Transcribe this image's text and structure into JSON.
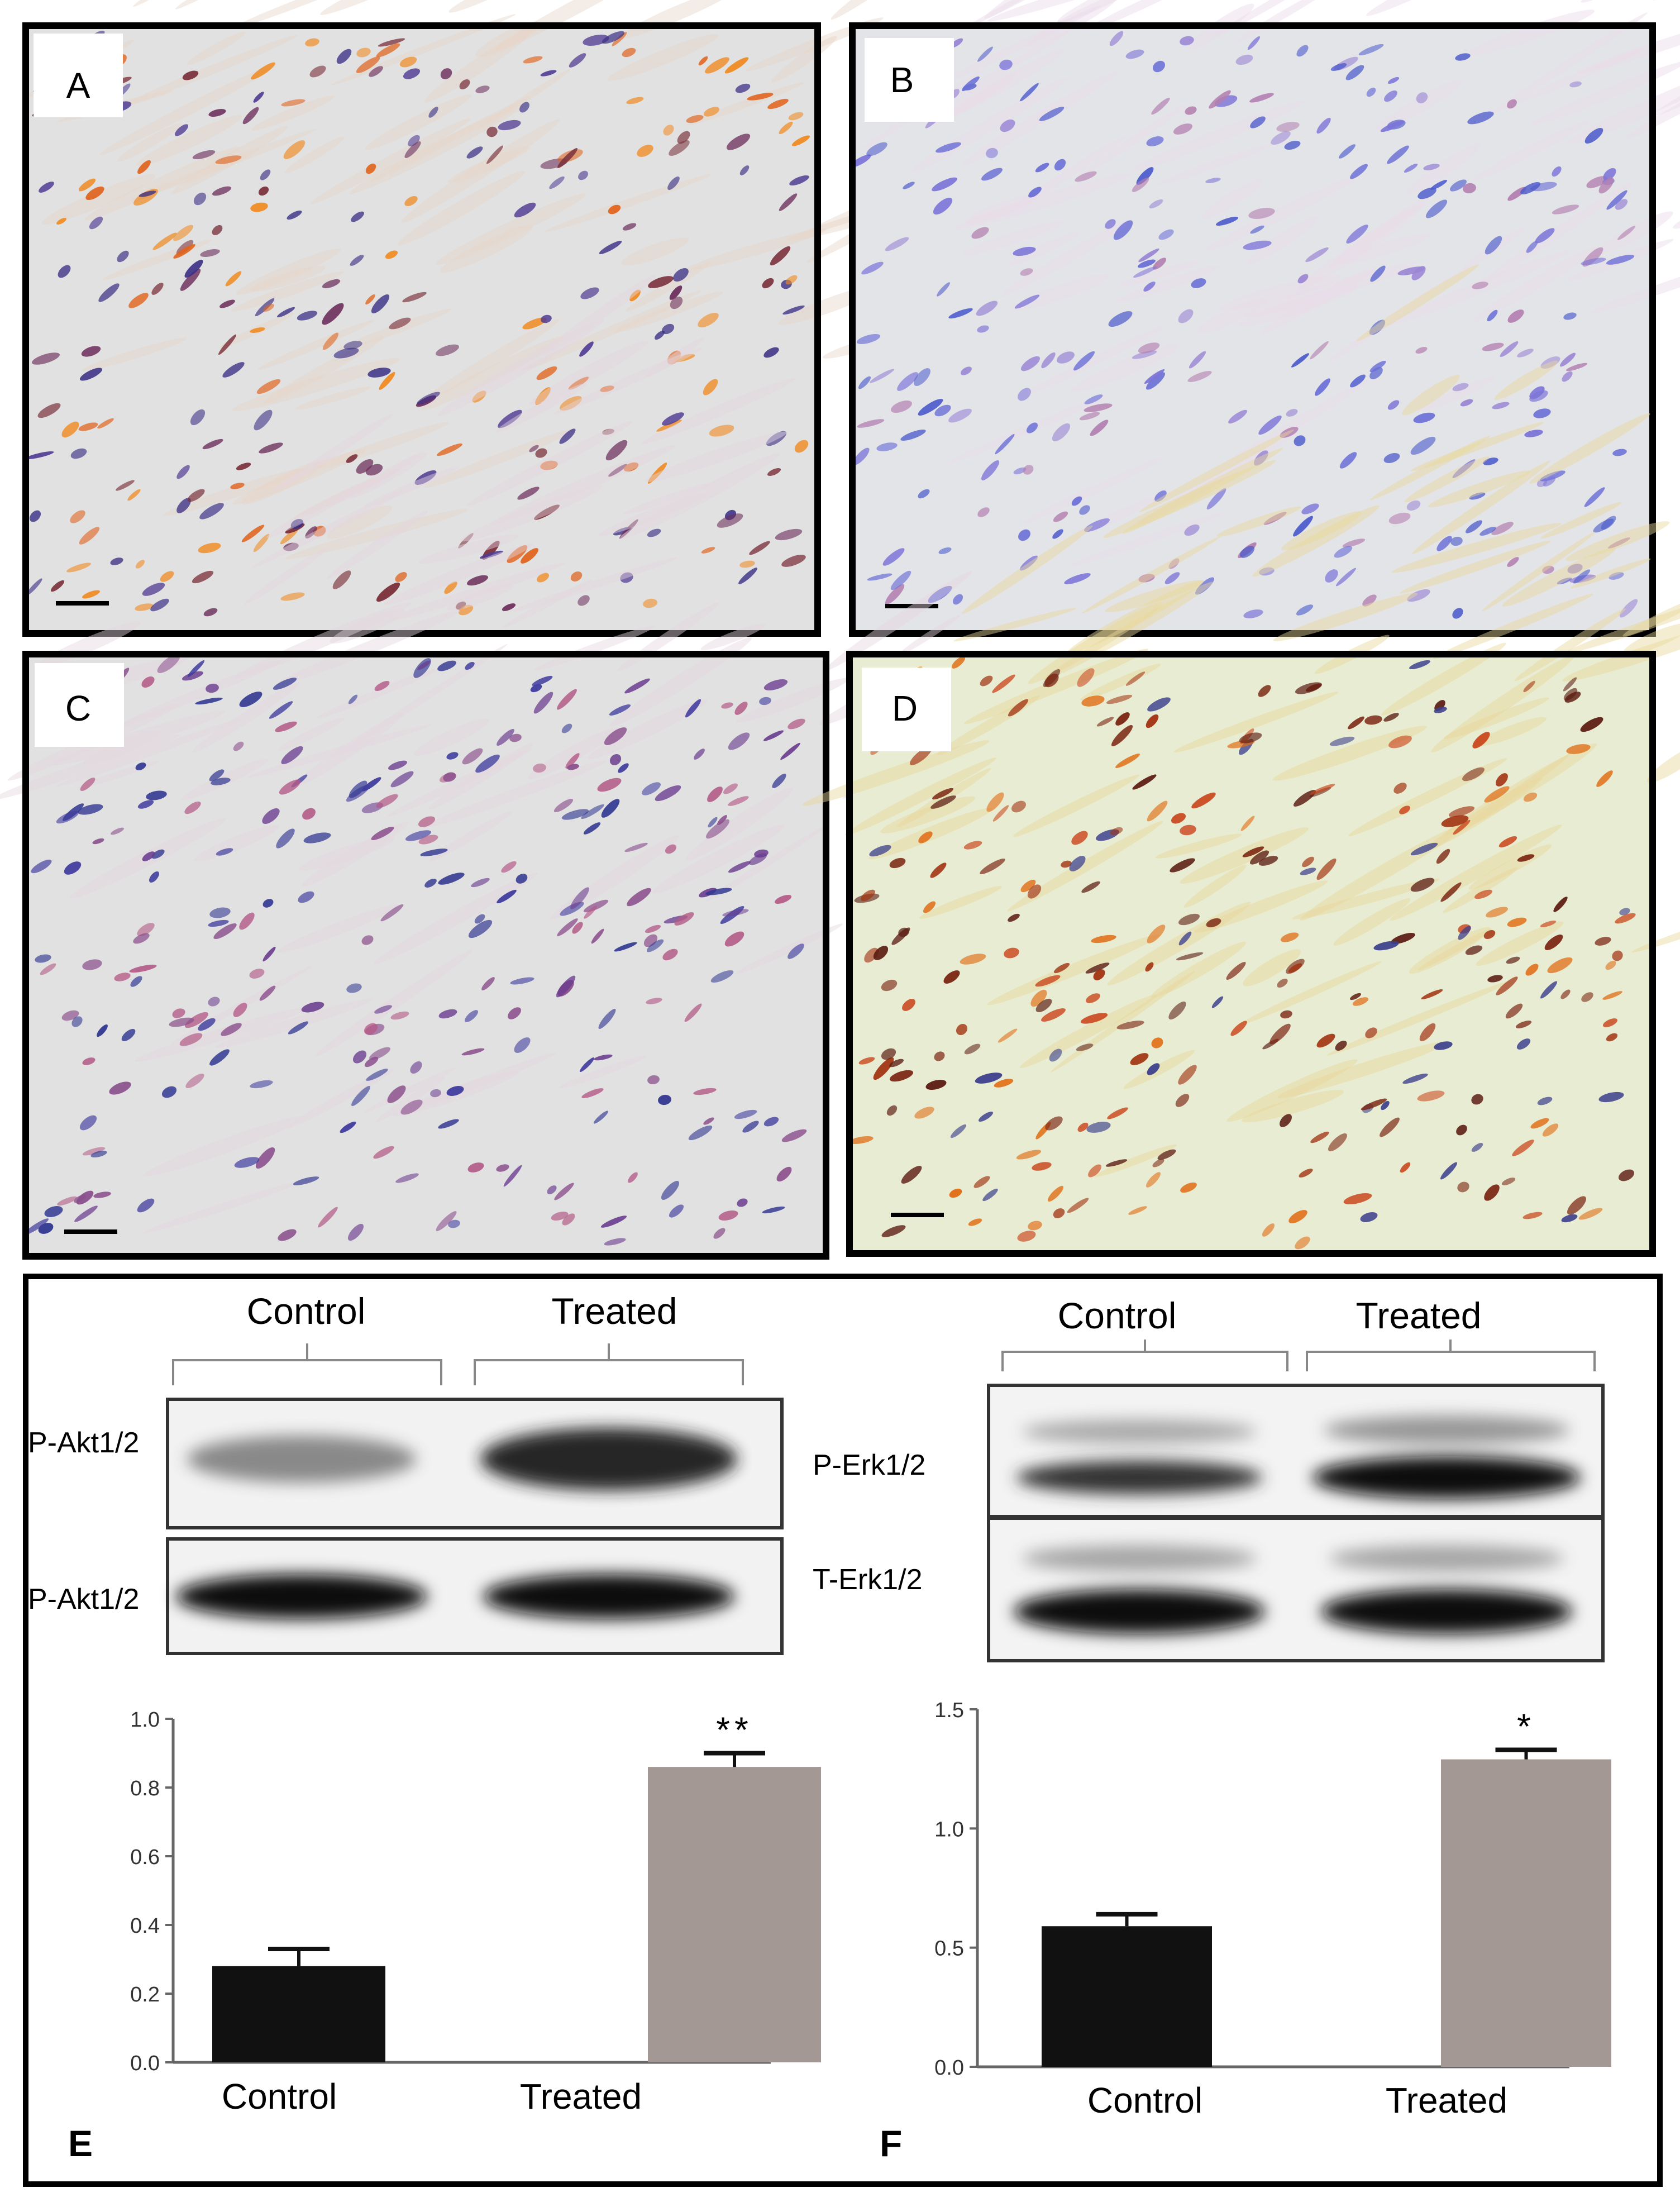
{
  "micro_panels": [
    {
      "letter": "A",
      "tissue": "#e1e1e1",
      "nuclei": [
        "#3a2f85",
        "#4f3a92",
        "#6b2c5a",
        "#7a2f3a",
        "#e0641e",
        "#f08a20"
      ],
      "stroma": "#e6d5c8"
    },
    {
      "letter": "B",
      "tissue": "#e3e4e8",
      "nuclei": [
        "#6a6fd6",
        "#7c74d8",
        "#9a86d4",
        "#b37fb0",
        "#4b5acb"
      ],
      "stroma": "#e8dce8"
    },
    {
      "letter": "C",
      "tissue": "#e1e1e1",
      "nuclei": [
        "#3f3b9e",
        "#6a3c8f",
        "#8a4f8c",
        "#b35a86",
        "#2f3590"
      ],
      "stroma": "#e4d6e0"
    },
    {
      "letter": "D",
      "tissue": "#e8ecd2",
      "nuclei": [
        "#5a1a10",
        "#7a2410",
        "#a0300e",
        "#e06a10",
        "#c9441a",
        "#3b3f8c"
      ],
      "stroma": "#e9d89a"
    }
  ],
  "blot_left": {
    "headers": [
      "Control",
      "Treated"
    ],
    "rows": [
      "P-Akt1/2",
      "P-Akt1/2"
    ]
  },
  "blot_right": {
    "headers": [
      "Control",
      "Treated"
    ],
    "rows": [
      "P-Erk1/2",
      "T-Erk1/2"
    ]
  },
  "chart_data": [
    {
      "type": "bar",
      "panel": "E",
      "categories": [
        "Control",
        "Treated"
      ],
      "values": [
        0.28,
        0.86
      ],
      "errors": [
        0.05,
        0.04
      ],
      "significance": [
        "",
        "**"
      ],
      "ylim": [
        0,
        1.0
      ],
      "yticks": [
        "0.0",
        "0.2",
        "0.4",
        "0.6",
        "0.8",
        "1.0"
      ],
      "colors": [
        "#111111",
        "#a49894"
      ]
    },
    {
      "type": "bar",
      "panel": "F",
      "categories": [
        "Control",
        "Treated"
      ],
      "values": [
        0.59,
        1.29
      ],
      "errors": [
        0.05,
        0.04
      ],
      "significance": [
        "",
        "*"
      ],
      "ylim": [
        0,
        1.5
      ],
      "yticks": [
        "0.0",
        "0.5",
        "1.0",
        "1.5"
      ],
      "colors": [
        "#111111",
        "#a49894"
      ]
    }
  ]
}
